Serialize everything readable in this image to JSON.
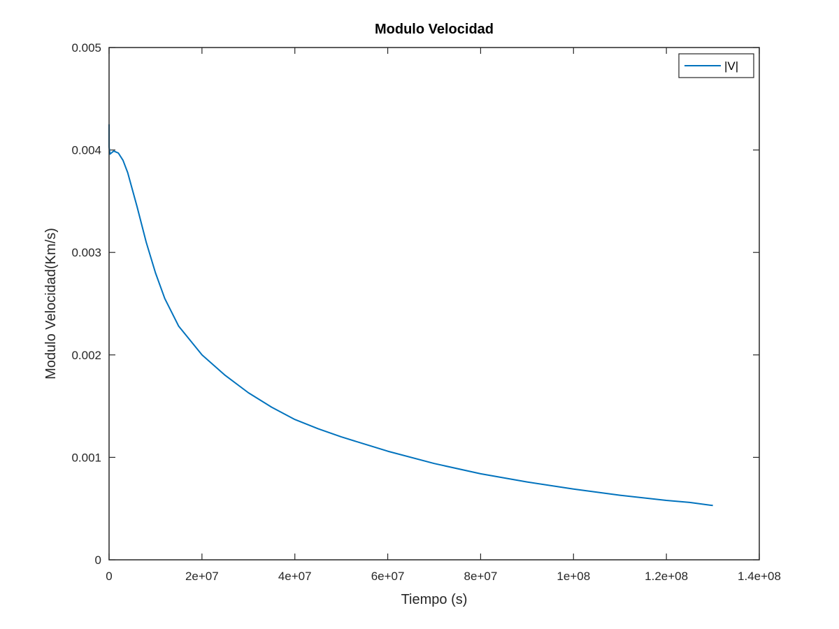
{
  "chart_data": {
    "type": "line",
    "title": "Modulo Velocidad",
    "xlabel": "Tiempo (s)",
    "ylabel": "Modulo Velocidad(Km/s)",
    "xlim": [
      0,
      140000000
    ],
    "ylim": [
      0,
      0.005
    ],
    "x_ticks": [
      0,
      20000000,
      40000000,
      60000000,
      80000000,
      100000000,
      120000000,
      140000000
    ],
    "x_tick_labels": [
      "0",
      "2e+07",
      "4e+07",
      "6e+07",
      "8e+07",
      "1e+08",
      "1.2e+08",
      "1.4e+08"
    ],
    "y_ticks": [
      0,
      0.001,
      0.002,
      0.003,
      0.004,
      0.005
    ],
    "y_tick_labels": [
      "0",
      "0.001",
      "0.002",
      "0.003",
      "0.004",
      "0.005"
    ],
    "grid": false,
    "legend_position": "top-right",
    "colors": {
      "series": "#0072BD",
      "axes": "#262626"
    },
    "series": [
      {
        "name": "|V|",
        "x": [
          0,
          0,
          200000,
          1000000,
          2000000,
          3000000,
          4000000,
          6000000,
          8000000,
          10000000,
          12000000,
          15000000,
          20000000,
          25000000,
          30000000,
          35000000,
          40000000,
          45000000,
          50000000,
          60000000,
          70000000,
          80000000,
          90000000,
          100000000,
          110000000,
          120000000,
          125000000,
          130000000
        ],
        "y": [
          0.00425,
          0.00403,
          0.00396,
          0.00399,
          0.00397,
          0.0039,
          0.00378,
          0.00345,
          0.0031,
          0.0028,
          0.00255,
          0.00228,
          0.002,
          0.0018,
          0.00163,
          0.00149,
          0.00137,
          0.00128,
          0.0012,
          0.00106,
          0.00094,
          0.00084,
          0.00076,
          0.00069,
          0.00063,
          0.00058,
          0.00056,
          0.00053
        ]
      }
    ]
  }
}
